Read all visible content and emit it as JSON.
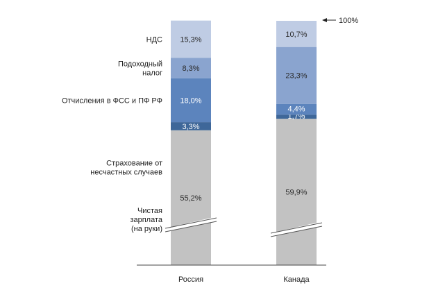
{
  "chart_data": {
    "type": "bar",
    "stacked": true,
    "categories": [
      "Россия",
      "Канада"
    ],
    "series": [
      {
        "name": "Чистая зарплата (на руки)",
        "values": [
          55.2,
          59.9
        ],
        "labels": [
          "55,2%",
          "59,9%"
        ],
        "color": "#c2c2c2"
      },
      {
        "name": "Страхование от несчастных случаев",
        "values": [
          3.3,
          1.7
        ],
        "labels": [
          "3,3%",
          "1,7%"
        ],
        "color": "#3e6799"
      },
      {
        "name": "Отчисления в ФСС и ПФ РФ",
        "values": [
          18.0,
          4.4
        ],
        "labels": [
          "18,0%",
          "4,4%"
        ],
        "color": "#5c84bd"
      },
      {
        "name": "Подоходный налог",
        "values": [
          8.3,
          23.3
        ],
        "labels": [
          "8,3%",
          "23,3%"
        ],
        "color": "#8aa4cf"
      },
      {
        "name": "НДС",
        "values": [
          15.3,
          10.7
        ],
        "labels": [
          "15,3%",
          "10,7%"
        ],
        "color": "#bfcce4"
      }
    ],
    "row_labels": [
      [
        "НДС"
      ],
      [
        "Подоходный",
        "налог"
      ],
      [
        "Отчисления в ФСС и ПФ РФ"
      ],
      [
        "Страхование от",
        "несчастных случаев"
      ],
      [
        "Чистая",
        "зарплата",
        "(на руки)"
      ]
    ],
    "annotation": "100%",
    "axis_break": true,
    "ylim": [
      0,
      100
    ]
  }
}
